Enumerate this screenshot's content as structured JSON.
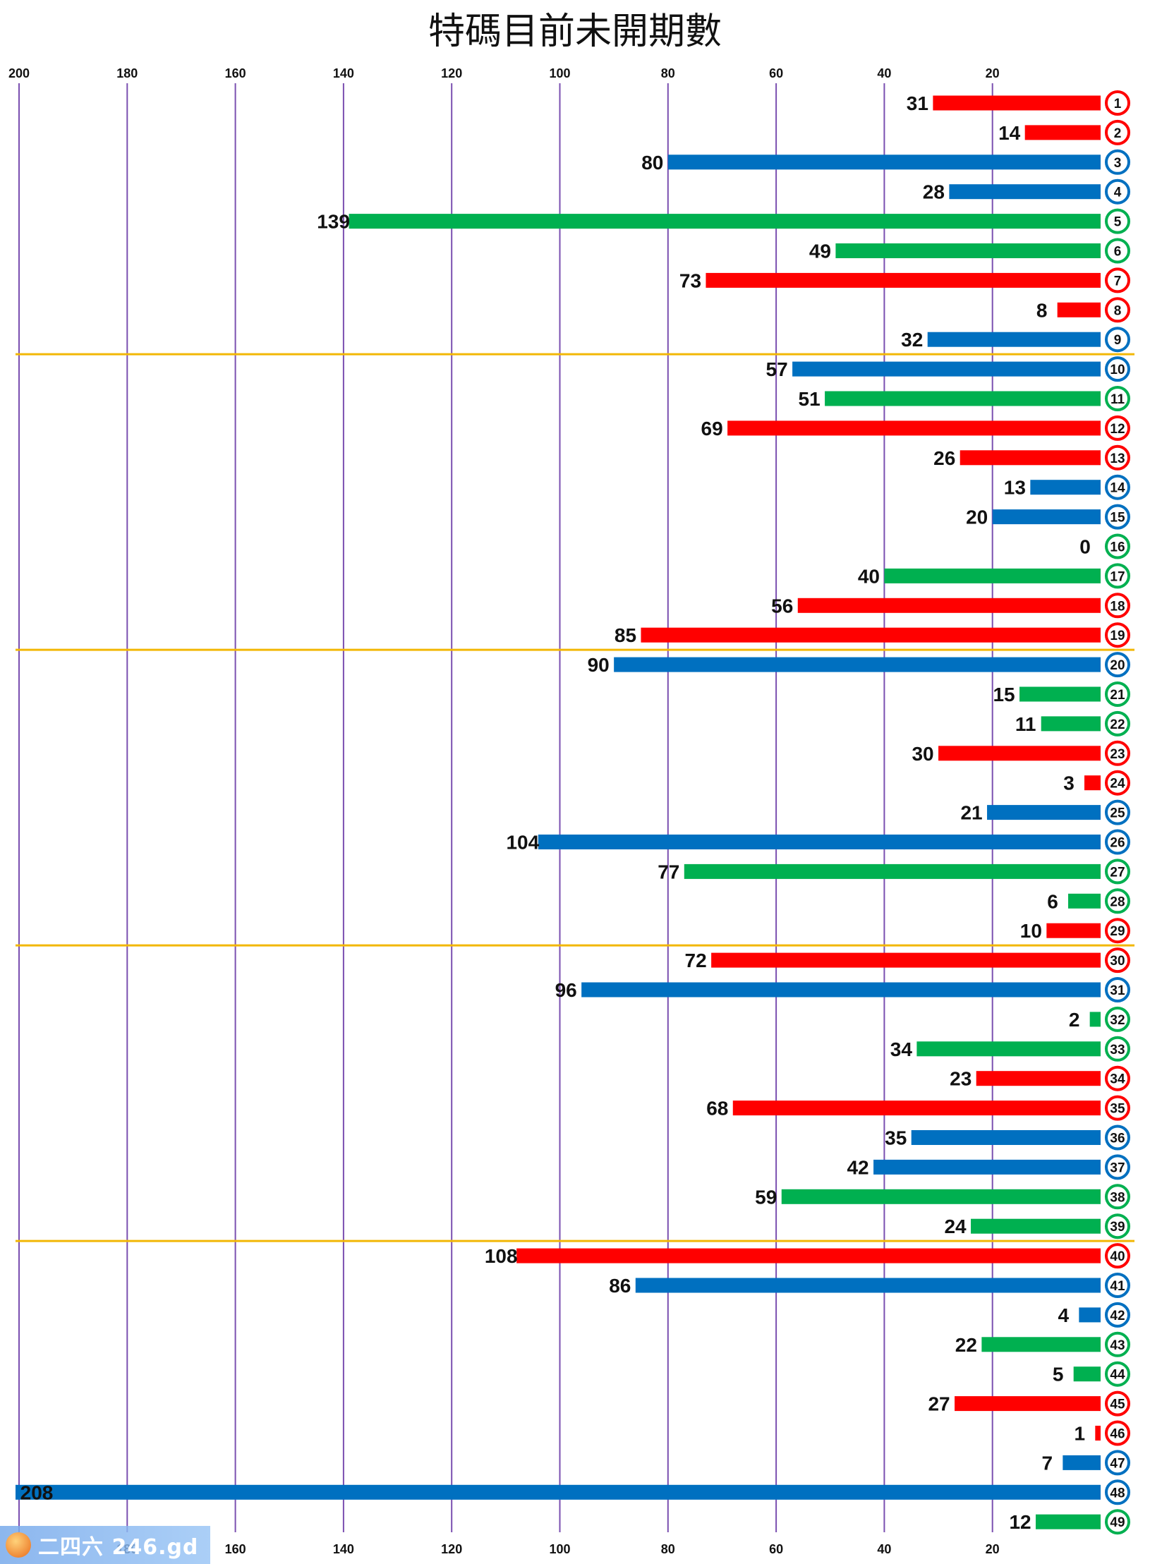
{
  "chart_data": {
    "type": "bar",
    "orientation": "horizontal",
    "x_axis_direction": "reversed",
    "title": "特碼目前未開期數",
    "xlim": [
      0,
      208
    ],
    "x_ticks": [
      200,
      180,
      160,
      140,
      120,
      100,
      80,
      60,
      40,
      20
    ],
    "x_tick_labels": [
      "200",
      "180",
      "160",
      "140",
      "120",
      "100",
      "80",
      "60",
      "40",
      "20"
    ],
    "grid": "vertical",
    "grid_color": "#7a4fb0",
    "group_separator_after": [
      9,
      19,
      29,
      39
    ],
    "separator_color": "#f2b705",
    "colors": {
      "red": "#ff0000",
      "blue": "#0070c0",
      "green": "#00b050"
    },
    "categories": [
      "1",
      "2",
      "3",
      "4",
      "5",
      "6",
      "7",
      "8",
      "9",
      "10",
      "11",
      "12",
      "13",
      "14",
      "15",
      "16",
      "17",
      "18",
      "19",
      "20",
      "21",
      "22",
      "23",
      "24",
      "25",
      "26",
      "27",
      "28",
      "29",
      "30",
      "31",
      "32",
      "33",
      "34",
      "35",
      "36",
      "37",
      "38",
      "39",
      "40",
      "41",
      "42",
      "43",
      "44",
      "45",
      "46",
      "47",
      "48",
      "49"
    ],
    "values": [
      31,
      14,
      80,
      28,
      139,
      49,
      73,
      8,
      32,
      57,
      51,
      69,
      26,
      13,
      20,
      0,
      40,
      56,
      85,
      90,
      15,
      11,
      30,
      3,
      21,
      104,
      77,
      6,
      10,
      72,
      96,
      2,
      34,
      23,
      68,
      35,
      42,
      59,
      24,
      108,
      86,
      4,
      22,
      5,
      27,
      1,
      7,
      208,
      12
    ],
    "bar_colors": [
      "red",
      "red",
      "blue",
      "blue",
      "green",
      "green",
      "red",
      "red",
      "blue",
      "blue",
      "green",
      "red",
      "red",
      "blue",
      "blue",
      "green",
      "green",
      "red",
      "red",
      "blue",
      "green",
      "green",
      "red",
      "red",
      "blue",
      "blue",
      "green",
      "green",
      "red",
      "red",
      "blue",
      "green",
      "green",
      "red",
      "red",
      "blue",
      "blue",
      "green",
      "green",
      "red",
      "blue",
      "blue",
      "green",
      "green",
      "red",
      "red",
      "blue",
      "blue",
      "green"
    ]
  },
  "watermark": {
    "text": "二四六 246.gd"
  }
}
